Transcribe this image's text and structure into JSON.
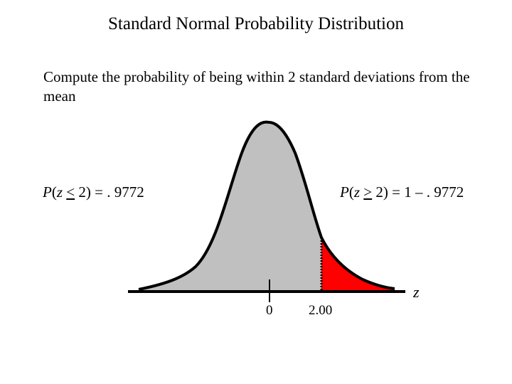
{
  "title": "Standard Normal Probability Distribution",
  "subtitle": "Compute the probability of being within 2 standard deviations from the mean",
  "left_prob": {
    "p": "P",
    "open": "(",
    "z": "z",
    "op": "<",
    "rest": " 2) = . 9772"
  },
  "right_prob": {
    "p": "P",
    "open": "(",
    "z": "z",
    "op": ">",
    "rest": " 2) = 1 – . 9772"
  },
  "ticks": {
    "zero": "0",
    "two": "2.00"
  },
  "axis_name": "z",
  "colors": {
    "curve_fill": "#c0c0c0",
    "tail_fill": "#ff0000",
    "outline": "#000000"
  }
}
